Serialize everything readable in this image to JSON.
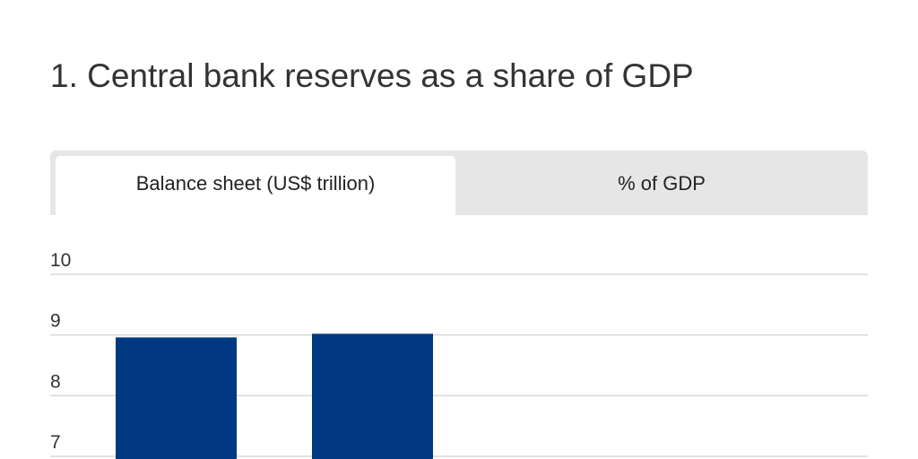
{
  "title": "1. Central bank reserves as a share of GDP",
  "tabs": [
    "Balance sheet (US$ trillion)",
    "% of GDP"
  ],
  "chart_data": {
    "type": "bar",
    "categories": [
      null,
      null
    ],
    "values": [
      8.96,
      9.02
    ],
    "color": "#003882",
    "ylim": [
      7,
      10
    ],
    "yticks": [
      7,
      8,
      9,
      10
    ],
    "grid": true
  }
}
